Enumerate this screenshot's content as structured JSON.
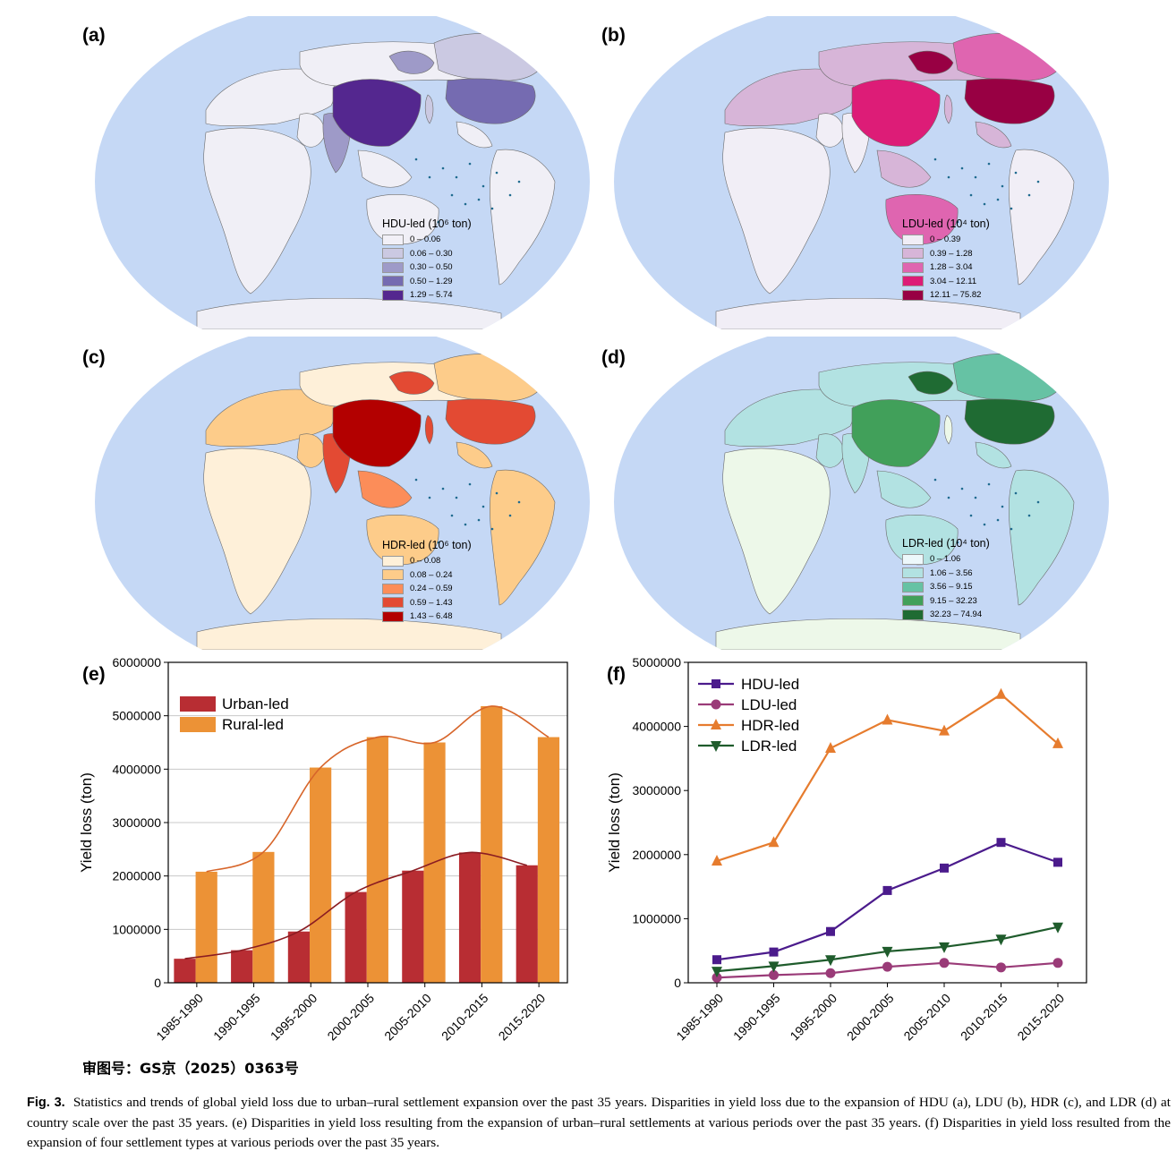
{
  "maps": [
    {
      "id": "a",
      "label": "(a)",
      "legend_title": "HDU-led (10⁶ ton)",
      "ocean_color": "#c5d8f5",
      "default_land": "#f0eff6",
      "legend": [
        {
          "range": "0 – 0.06",
          "color": "#f2f0f7"
        },
        {
          "range": "0.06 – 0.30",
          "color": "#cbc9e2"
        },
        {
          "range": "0.30 – 0.50",
          "color": "#9e9ac8"
        },
        {
          "range": "0.50 – 1.29",
          "color": "#756bb1"
        },
        {
          "range": "1.29 – 5.74",
          "color": "#54278f"
        }
      ]
    },
    {
      "id": "b",
      "label": "(b)",
      "legend_title": "LDU-led (10⁴ ton)",
      "ocean_color": "#c5d8f5",
      "default_land": "#f1eef6",
      "legend": [
        {
          "range": "0 – 0.39",
          "color": "#f1eef6"
        },
        {
          "range": "0.39 – 1.28",
          "color": "#d7b5d8"
        },
        {
          "range": "1.28 – 3.04",
          "color": "#df65b0"
        },
        {
          "range": "3.04 – 12.11",
          "color": "#dd1c77"
        },
        {
          "range": "12.11 – 75.82",
          "color": "#980043"
        }
      ]
    },
    {
      "id": "c",
      "label": "(c)",
      "legend_title": "HDR-led (10⁶ ton)",
      "ocean_color": "#c5d8f5",
      "default_land": "#fef0d9",
      "legend": [
        {
          "range": "0 – 0.08",
          "color": "#fef0d9"
        },
        {
          "range": "0.08 – 0.24",
          "color": "#fdcc8a"
        },
        {
          "range": "0.24 – 0.59",
          "color": "#fc8d59"
        },
        {
          "range": "0.59 – 1.43",
          "color": "#e34a33"
        },
        {
          "range": "1.43 – 6.48",
          "color": "#b30000"
        }
      ]
    },
    {
      "id": "d",
      "label": "(d)",
      "legend_title": "LDR-led (10⁴ ton)",
      "ocean_color": "#c5d8f5",
      "default_land": "#edf8e9",
      "legend": [
        {
          "range": "0 – 1.06",
          "color": "#edf8fb"
        },
        {
          "range": "1.06 – 3.56",
          "color": "#b2e2e2"
        },
        {
          "range": "3.56 – 9.15",
          "color": "#66c2a4"
        },
        {
          "range": "9.15 – 32.23",
          "color": "#41a05a"
        },
        {
          "range": "32.23 – 74.94",
          "color": "#1f6b33"
        }
      ]
    }
  ],
  "chart_data": [
    {
      "id": "e",
      "label": "(e)",
      "type": "bar",
      "categories": [
        "1985-1990",
        "1990-1995",
        "1995-2000",
        "2000-2005",
        "2005-2010",
        "2010-2015",
        "2015-2020"
      ],
      "series": [
        {
          "name": "Urban-led",
          "color": "#b82d33",
          "values": [
            450000,
            610000,
            960000,
            1700000,
            2100000,
            2440000,
            2200000
          ]
        },
        {
          "name": "Rural-led",
          "color": "#ec9236",
          "values": [
            2080000,
            2450000,
            4030000,
            4600000,
            4500000,
            5180000,
            4600000
          ]
        }
      ],
      "trend_colors": [
        "#8b1c22",
        "#d7652a"
      ],
      "ylabel": "Yield loss (ton)",
      "ylim": [
        0,
        6000000
      ],
      "yticks": [
        "0",
        "1000000",
        "2000000",
        "3000000",
        "4000000",
        "5000000",
        "6000000"
      ],
      "grid": true,
      "legend_position": "top-left"
    },
    {
      "id": "f",
      "label": "(f)",
      "type": "line",
      "categories": [
        "1985-1990",
        "1990-1995",
        "1995-2000",
        "2000-2005",
        "2005-2010",
        "2010-2015",
        "2015-2020"
      ],
      "series": [
        {
          "name": "HDU-led",
          "color": "#4b1b8c",
          "marker": "square",
          "values": [
            360000,
            480000,
            800000,
            1440000,
            1790000,
            2190000,
            1880000
          ]
        },
        {
          "name": "LDU-led",
          "color": "#9a3b78",
          "marker": "circle",
          "values": [
            80000,
            120000,
            150000,
            250000,
            310000,
            240000,
            310000
          ]
        },
        {
          "name": "HDR-led",
          "color": "#e67c2e",
          "marker": "triangle-up",
          "values": [
            1900000,
            2190000,
            3660000,
            4100000,
            3930000,
            4500000,
            3730000
          ]
        },
        {
          "name": "LDR-led",
          "color": "#1f5c2c",
          "marker": "triangle-down",
          "values": [
            180000,
            260000,
            360000,
            490000,
            560000,
            680000,
            870000
          ]
        }
      ],
      "ylabel": "Yield loss (ton)",
      "ylim": [
        0,
        5000000
      ],
      "yticks": [
        "0",
        "1000000",
        "2000000",
        "3000000",
        "4000000",
        "5000000"
      ],
      "grid": false,
      "legend_position": "top-left"
    }
  ],
  "approval_number": "审图号：GS京（2025）0363号",
  "caption": {
    "figure_label": "Fig. 3.",
    "text": "Statistics and trends of global yield loss due to urban–rural settlement expansion over the past 35 years. Disparities in yield loss due to the expansion of HDU (a), LDU (b), HDR (c), and LDR (d) at country scale over the past 35 years. (e) Disparities in yield loss resulting from the expansion of urban–rural settlements at various periods over the past 35 years. (f) Disparities in yield loss resulted from the expansion of four settlement types at various periods over the past 35 years."
  }
}
